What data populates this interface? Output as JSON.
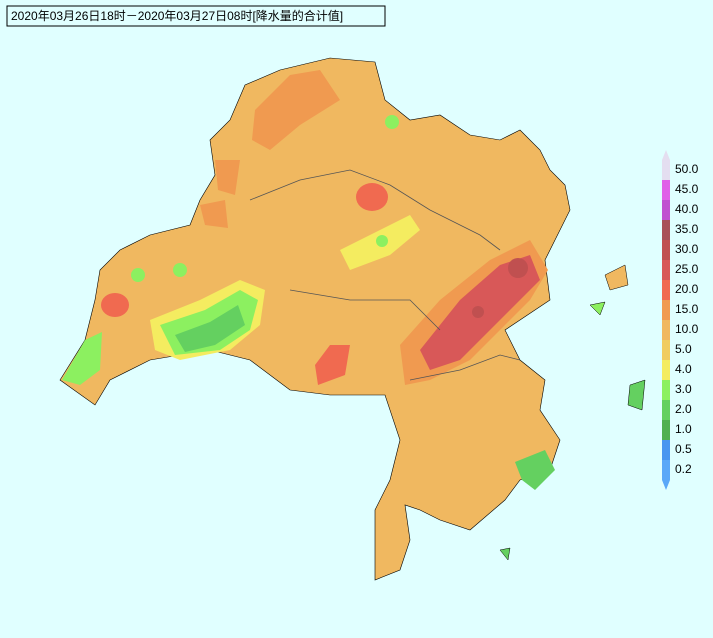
{
  "header": {
    "title": "2020年03月26日18时－2020年03月27日08时[降水量的合计值]"
  },
  "legend": {
    "items": [
      {
        "label": "50.0",
        "color": "#e4def0"
      },
      {
        "label": "45.0",
        "color": "#e060e8"
      },
      {
        "label": "40.0",
        "color": "#c050d0"
      },
      {
        "label": "35.0",
        "color": "#a85058"
      },
      {
        "label": "30.0",
        "color": "#c05050"
      },
      {
        "label": "25.0",
        "color": "#d85858"
      },
      {
        "label": "20.0",
        "color": "#f06a50"
      },
      {
        "label": "15.0",
        "color": "#f09a50"
      },
      {
        "label": "10.0",
        "color": "#f0b860"
      },
      {
        "label": "5.0",
        "color": "#f0cc60"
      },
      {
        "label": "4.0",
        "color": "#f4ec60"
      },
      {
        "label": "3.0",
        "color": "#8cf060"
      },
      {
        "label": "2.0",
        "color": "#64d060"
      },
      {
        "label": "1.0",
        "color": "#50b050"
      },
      {
        "label": "0.5",
        "color": "#4896f0"
      },
      {
        "label": "0.2",
        "color": "#5aa8f8"
      }
    ]
  }
}
